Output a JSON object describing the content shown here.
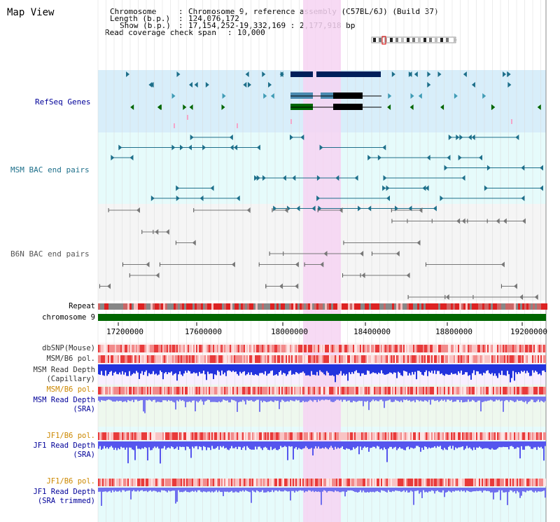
{
  "title": "Map View",
  "info": {
    "chromosome_key": "Chromosome",
    "chromosome_value": "Chromosome 9, reference assembly (C57BL/6J) (Build 37)",
    "length_key": "Length (b.p.)",
    "length_value": "124,076,172",
    "show_key": "Show (b.p.)",
    "show_value": "17,154,252-19,332,169 : 2,177,918 bp",
    "coverage_key": "Read coverage check span",
    "coverage_value": "10,000"
  },
  "tracks": {
    "refseq": "RefSeq Genes",
    "msm_bac": "MSM BAC end pairs",
    "b6n_bac": "B6N BAC end pairs",
    "repeat": "Repeat",
    "chromosome": "chromosome 9"
  },
  "axis": {
    "ticks": [
      "17200000",
      "17600000",
      "18000000",
      "18400000",
      "18800000",
      "19200000"
    ]
  },
  "lower_tracks": {
    "dbsnp": "dbSNP(Mouse)",
    "msm_b6_pol": "MSM/B6 pol.",
    "msm_depth_cap_1": "MSM Read Depth",
    "msm_depth_cap_2": "(Capillary)",
    "msm_b6_pol2": "MSM/B6 pol.",
    "msm_depth_sra_1": "MSM Read Depth",
    "msm_depth_sra_2": "(SRA)",
    "jf1_pol1": "JF1/B6 pol.",
    "jf1_depth_1": "JF1 Read Depth",
    "jf1_depth_2": "(SRA)",
    "jf1_pol2": "JF1/B6 pol.",
    "jf1_trim_1": "JF1 Read Depth",
    "jf1_trim_2": "(SRA trimmed)"
  },
  "colors": {
    "refseq_bg": "#d8eefa",
    "bac_bg": "#e6fbfb",
    "gray_bg": "#f5f5f5",
    "highlight": "#f6d4f2",
    "navy": "#001f5a",
    "teal": "#1d6f8a",
    "green": "#006600",
    "blue_label": "#000099",
    "orange_label": "#cc8800"
  }
}
